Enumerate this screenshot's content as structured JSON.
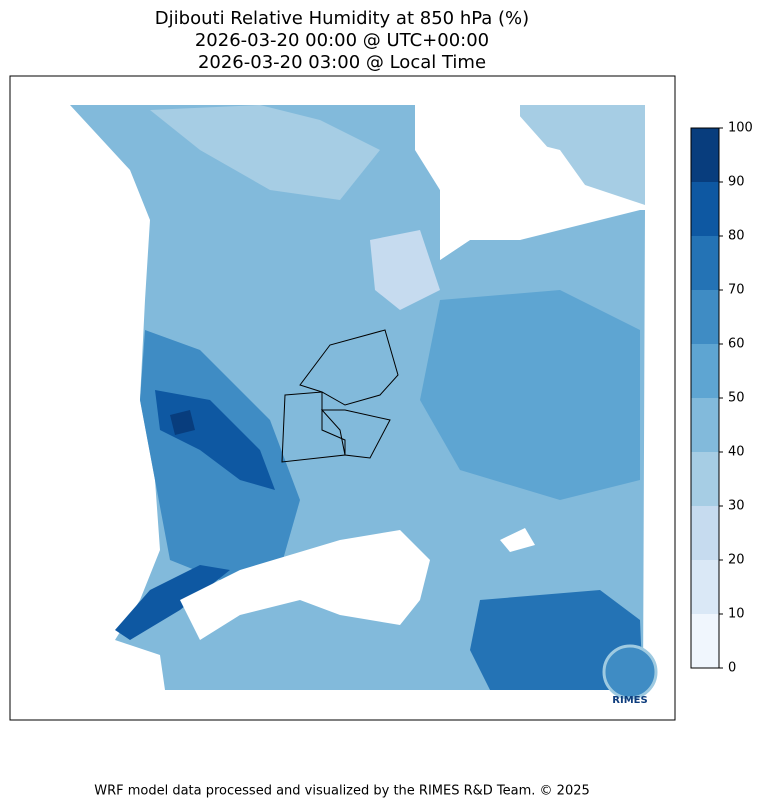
{
  "chart_data": {
    "type": "contour-map",
    "title": [
      "Djibouti Relative Humidity at 850 hPa (%)",
      "2026-03-20 00:00 @ UTC+00:00",
      "2026-03-20 03:00 @ Local Time"
    ],
    "colorbar": {
      "levels": [
        0,
        10,
        20,
        30,
        40,
        50,
        60,
        70,
        80,
        90,
        100
      ],
      "colors": [
        "#f0f6fd",
        "#dae8f6",
        "#c6dbef",
        "#a6cde4",
        "#82badb",
        "#5ea5d2",
        "#3f8cc4",
        "#2473b5",
        "#0e58a2",
        "#083d7d"
      ]
    },
    "logo_text": "RIMES",
    "footer": "WRF model data processed and visualized by the RIMES R&D Team. © 2025"
  }
}
